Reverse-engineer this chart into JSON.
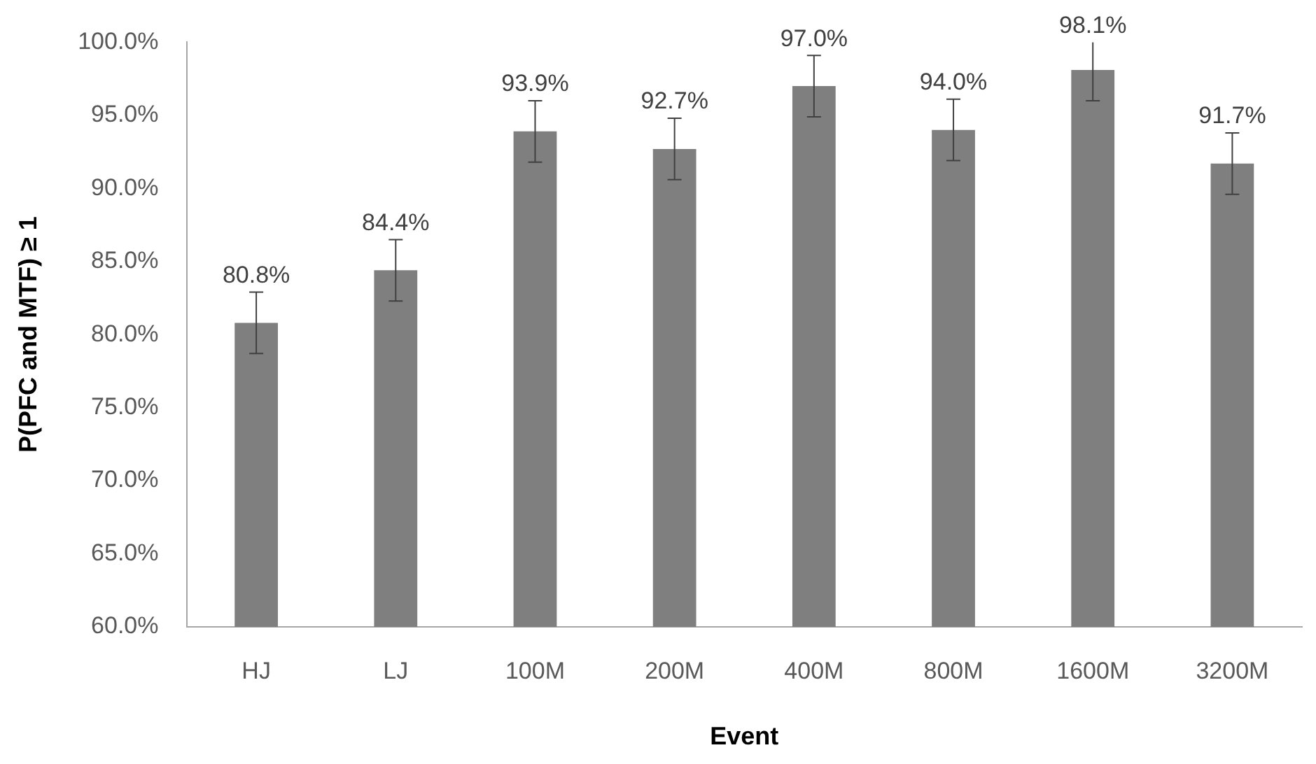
{
  "chart_data": {
    "type": "bar",
    "xlabel": "Event",
    "ylabel": "P(PFC and MTF) ≥ 1",
    "categories": [
      "HJ",
      "LJ",
      "100M",
      "200M",
      "400M",
      "800M",
      "1600M",
      "3200M"
    ],
    "values": [
      80.8,
      84.4,
      93.9,
      92.7,
      97.0,
      94.0,
      98.1,
      91.7
    ],
    "color": "#7f7f7f",
    "errors": [
      2.1,
      2.1,
      2.1,
      2.1,
      2.1,
      2.1,
      [
        96.0,
        100.0
      ],
      2.1
    ],
    "value_labels": [
      "80.8%",
      "84.4%",
      "93.9%",
      "92.7%",
      "97.0%",
      "94.0%",
      "98.1%",
      "91.7%"
    ],
    "ylim": [
      60,
      100
    ],
    "yticks": [
      {
        "value": 60,
        "label": "60.0%"
      },
      {
        "value": 65,
        "label": "65.0%"
      },
      {
        "value": 70,
        "label": "70.0%"
      },
      {
        "value": 75,
        "label": "75.0%"
      },
      {
        "value": 80,
        "label": "80.0%"
      },
      {
        "value": 85,
        "label": "85.0%"
      },
      {
        "value": 90,
        "label": "90.0%"
      },
      {
        "value": 95,
        "label": "95.0%"
      },
      {
        "value": 100,
        "label": "100.0%"
      }
    ],
    "grid": false,
    "legend": false
  }
}
